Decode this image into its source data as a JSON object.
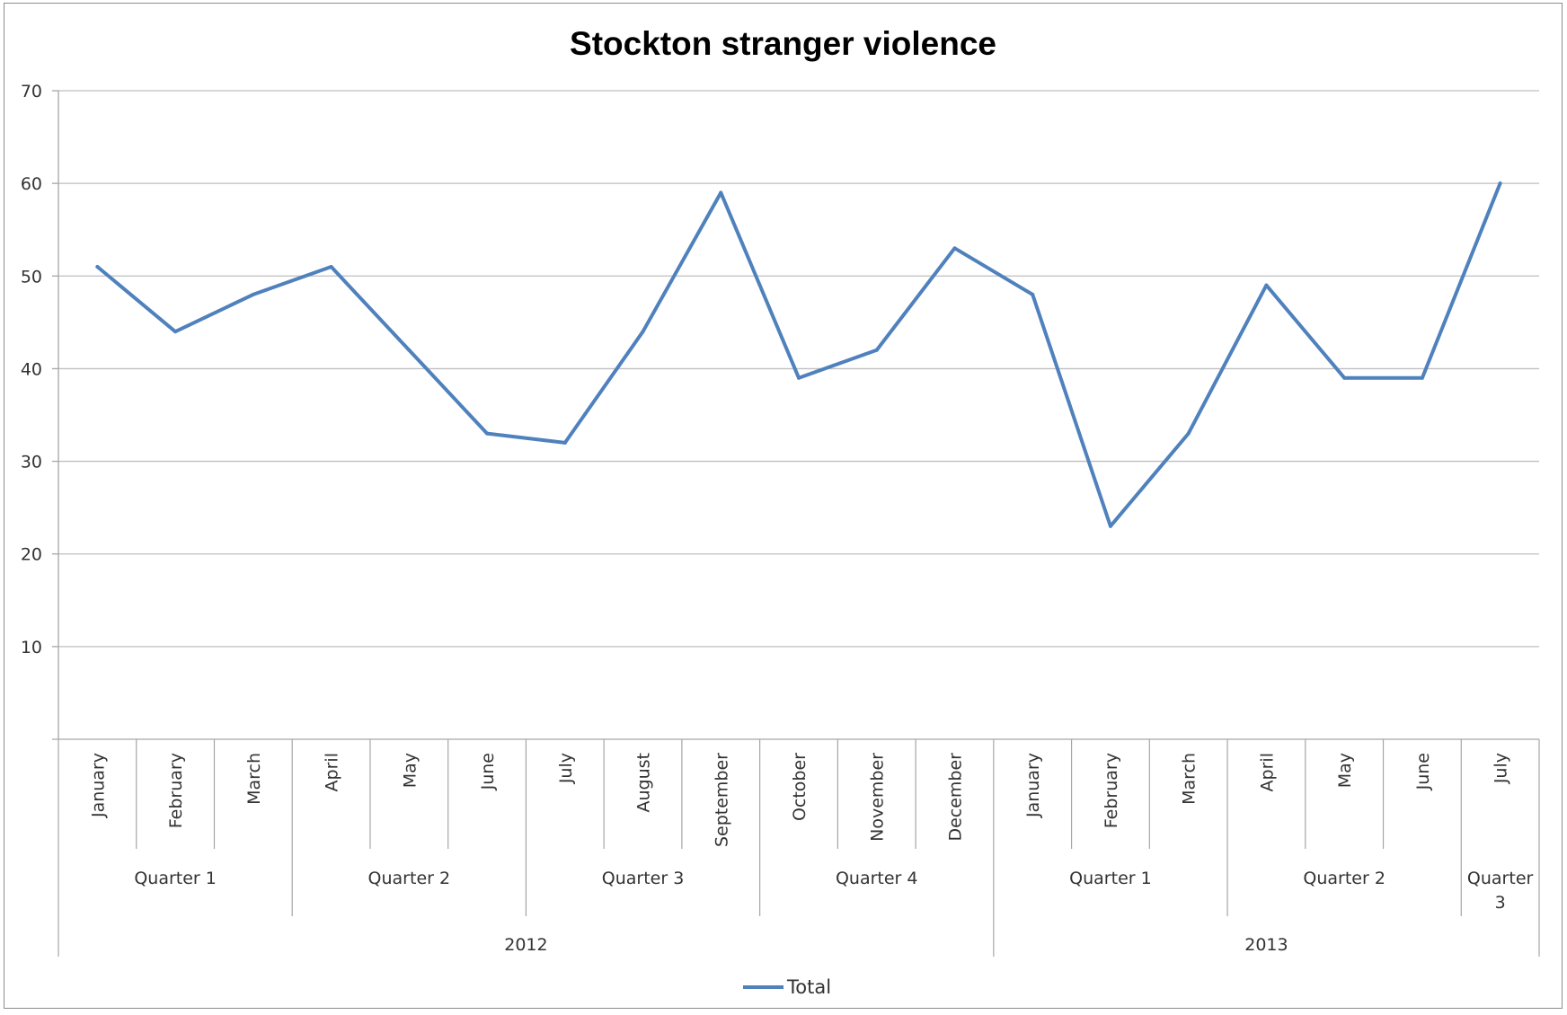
{
  "chart_data": {
    "type": "line",
    "title": "Stockton stranger violence",
    "xlabel": "",
    "ylabel": "",
    "ylim": [
      0,
      70
    ],
    "yticks": [
      10,
      20,
      30,
      40,
      50,
      60,
      70
    ],
    "grid": true,
    "legend_position": "bottom",
    "colors": {
      "line": "#4f81bd",
      "grid": "#bfbfbf",
      "axis": "#a6a6a6"
    },
    "categories": [
      "January",
      "February",
      "March",
      "April",
      "May",
      "June",
      "July",
      "August",
      "September",
      "October",
      "November",
      "December",
      "January",
      "February",
      "March",
      "April",
      "May",
      "June",
      "July"
    ],
    "quarters": [
      {
        "label": "Quarter 1",
        "count": 3
      },
      {
        "label": "Quarter 2",
        "count": 3
      },
      {
        "label": "Quarter 3",
        "count": 3
      },
      {
        "label": "Quarter 4",
        "count": 3
      },
      {
        "label": "Quarter 1",
        "count": 3
      },
      {
        "label": "Quarter 2",
        "count": 3
      },
      {
        "label": "Quarter 3",
        "count": 1,
        "lines": [
          "Quarter",
          "3"
        ]
      }
    ],
    "years": [
      {
        "label": "2012",
        "count": 12
      },
      {
        "label": "2013",
        "count": 7
      }
    ],
    "series": [
      {
        "name": "Total",
        "values": [
          51,
          44,
          48,
          51,
          42,
          33,
          32,
          44,
          59,
          39,
          42,
          53,
          48,
          23,
          33,
          49,
          39,
          39,
          60
        ]
      }
    ]
  }
}
